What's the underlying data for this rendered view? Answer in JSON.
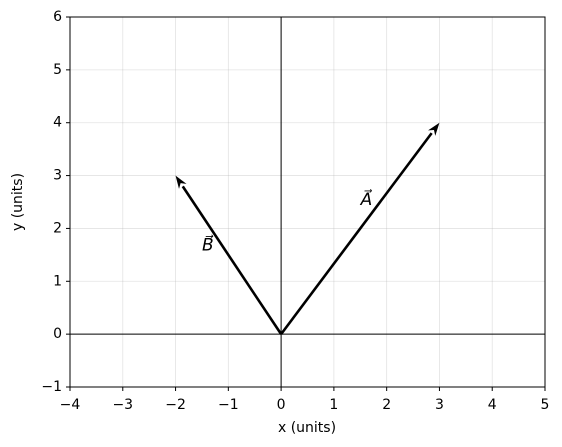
{
  "chart_data": {
    "type": "quiver",
    "xlabel": "x (units)",
    "ylabel": "y (units)",
    "xlim": [
      -4,
      5
    ],
    "ylim": [
      -1,
      6
    ],
    "xticks": [
      {
        "value": -4,
        "label": "−4"
      },
      {
        "value": -3,
        "label": "−3"
      },
      {
        "value": -2,
        "label": "−2"
      },
      {
        "value": -1,
        "label": "−1"
      },
      0,
      1,
      2,
      3,
      4,
      5
    ],
    "yticks": [
      {
        "value": -1,
        "label": "−1"
      },
      0,
      1,
      2,
      3,
      4,
      5,
      6
    ],
    "grid": true,
    "zero_lines": true,
    "vectors": [
      {
        "name": "A⃗",
        "x0": 0,
        "y0": 0,
        "dx": 3,
        "dy": 4,
        "color": "#000000"
      },
      {
        "name": "B⃗",
        "x0": 0,
        "y0": 0,
        "dx": -2,
        "dy": 3,
        "color": "#000000"
      }
    ]
  }
}
